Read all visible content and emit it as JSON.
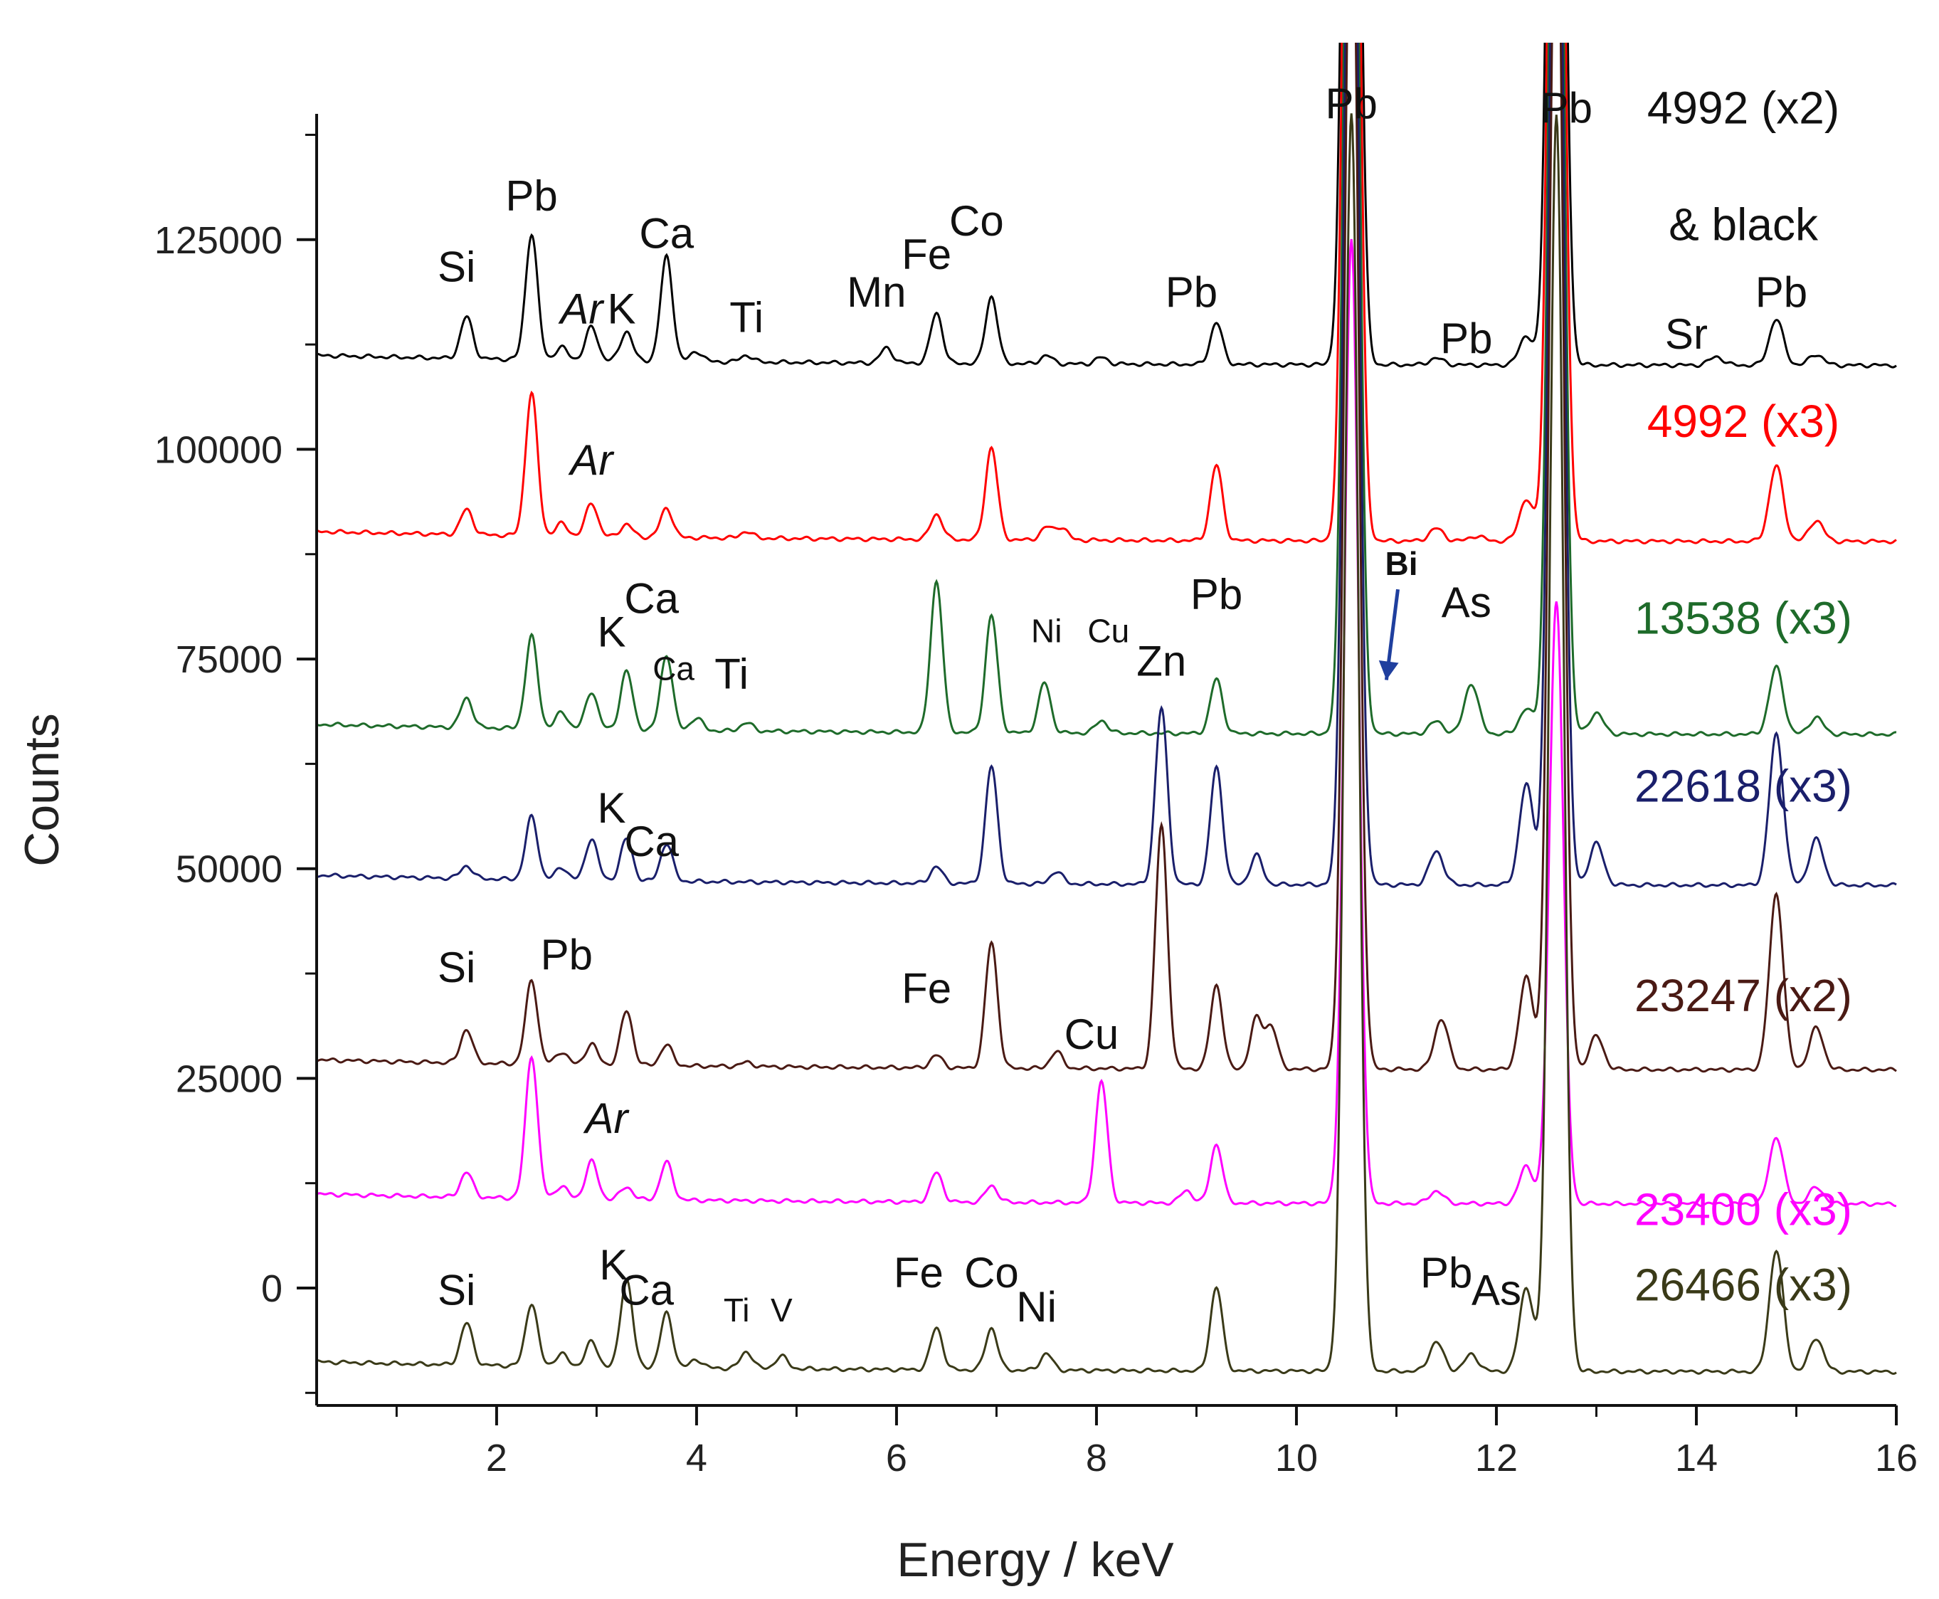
{
  "chart_data": {
    "type": "line",
    "title": "",
    "xlabel": "Energy / keV",
    "ylabel": "Counts",
    "xlim": [
      0.2,
      16
    ],
    "ylim": [
      -14000,
      140000
    ],
    "x_ticks": [
      2,
      4,
      6,
      8,
      10,
      12,
      14,
      16
    ],
    "x_tick_labels": [
      "2",
      "4",
      "6",
      "8",
      "10",
      "12",
      "14",
      "16"
    ],
    "y_ticks": [
      0,
      25000,
      50000,
      75000,
      100000,
      125000
    ],
    "y_tick_labels": [
      "0",
      "25000",
      "50000",
      "75000",
      "100000",
      "125000"
    ],
    "series": [
      {
        "name": "4992 (x2) & black",
        "label_lines": [
          "4992 (x2)",
          "& black"
        ],
        "color": "#000000",
        "baseline": 110000,
        "peaks": [
          [
            1.7,
            5000
          ],
          [
            2.35,
            15000
          ],
          [
            2.65,
            1500
          ],
          [
            2.95,
            4000
          ],
          [
            3.3,
            3500
          ],
          [
            3.7,
            12500
          ],
          [
            4.0,
            1200
          ],
          [
            4.5,
            800
          ],
          [
            5.9,
            1800
          ],
          [
            6.4,
            6000
          ],
          [
            6.95,
            8000
          ],
          [
            7.5,
            1000
          ],
          [
            8.05,
            800
          ],
          [
            9.2,
            5000
          ],
          [
            10.55,
            150000
          ],
          [
            11.4,
            800
          ],
          [
            12.3,
            3500
          ],
          [
            12.6,
            150000
          ],
          [
            14.2,
            1000
          ],
          [
            14.8,
            5500
          ],
          [
            15.2,
            1300
          ]
        ]
      },
      {
        "name": "4992 (x3)",
        "label_lines": [
          "4992 (x3)"
        ],
        "color": "#ff0000",
        "baseline": 89000,
        "peaks": [
          [
            1.7,
            3000
          ],
          [
            2.35,
            17000
          ],
          [
            2.65,
            1500
          ],
          [
            2.95,
            4000
          ],
          [
            3.3,
            1500
          ],
          [
            3.7,
            3500
          ],
          [
            4.5,
            800
          ],
          [
            6.4,
            3000
          ],
          [
            6.95,
            11000
          ],
          [
            7.5,
            1500
          ],
          [
            7.65,
            1500
          ],
          [
            9.2,
            9000
          ],
          [
            10.55,
            150000
          ],
          [
            11.4,
            1500
          ],
          [
            11.8,
            600
          ],
          [
            12.3,
            5000
          ],
          [
            12.6,
            150000
          ],
          [
            14.8,
            9000
          ],
          [
            15.2,
            2500
          ]
        ]
      },
      {
        "name": "13538 (x3)",
        "label_lines": [
          "13538 (x3)"
        ],
        "color": "#1e6b2a",
        "baseline": 66000,
        "peaks": [
          [
            1.7,
            3500
          ],
          [
            2.35,
            11000
          ],
          [
            2.65,
            2000
          ],
          [
            2.95,
            4500
          ],
          [
            3.3,
            7000
          ],
          [
            3.7,
            9000
          ],
          [
            4.0,
            1500
          ],
          [
            4.5,
            1000
          ],
          [
            6.4,
            18000
          ],
          [
            6.95,
            14000
          ],
          [
            7.48,
            6000
          ],
          [
            8.05,
            1500
          ],
          [
            9.2,
            6500
          ],
          [
            10.55,
            150000
          ],
          [
            11.4,
            1500
          ],
          [
            11.75,
            6000
          ],
          [
            12.3,
            3000
          ],
          [
            12.6,
            150000
          ],
          [
            13.0,
            2500
          ],
          [
            14.8,
            8000
          ],
          [
            15.2,
            2000
          ]
        ]
      },
      {
        "name": "22618 (x3)",
        "label_lines": [
          "22618 (x3)"
        ],
        "color": "#1a1f6b",
        "baseline": 48000,
        "peaks": [
          [
            1.7,
            1500
          ],
          [
            2.35,
            7500
          ],
          [
            2.65,
            1500
          ],
          [
            2.95,
            5000
          ],
          [
            3.3,
            5000
          ],
          [
            3.7,
            4500
          ],
          [
            6.4,
            2000
          ],
          [
            6.95,
            14000
          ],
          [
            7.6,
            1500
          ],
          [
            8.65,
            21000
          ],
          [
            9.2,
            14000
          ],
          [
            9.6,
            3500
          ],
          [
            10.55,
            150000
          ],
          [
            11.4,
            4000
          ],
          [
            12.3,
            12000
          ],
          [
            12.6,
            150000
          ],
          [
            13.0,
            5000
          ],
          [
            14.8,
            18000
          ],
          [
            15.2,
            5500
          ]
        ]
      },
      {
        "name": "23247 (x2)",
        "label_lines": [
          "23247 (x2)"
        ],
        "color": "#4a1a14",
        "baseline": 26000,
        "peaks": [
          [
            1.7,
            4000
          ],
          [
            2.35,
            10000
          ],
          [
            2.65,
            1500
          ],
          [
            2.95,
            2500
          ],
          [
            3.3,
            6500
          ],
          [
            3.7,
            2500
          ],
          [
            4.5,
            500
          ],
          [
            6.4,
            1500
          ],
          [
            6.95,
            15000
          ],
          [
            7.6,
            2000
          ],
          [
            8.65,
            29000
          ],
          [
            9.2,
            10000
          ],
          [
            9.6,
            6000
          ],
          [
            9.75,
            5000
          ],
          [
            10.55,
            150000
          ],
          [
            11.45,
            6000
          ],
          [
            12.3,
            11000
          ],
          [
            12.6,
            150000
          ],
          [
            13.0,
            4000
          ],
          [
            14.8,
            21000
          ],
          [
            15.2,
            5000
          ]
        ]
      },
      {
        "name": "23400 (x3)",
        "label_lines": [
          "23400 (x3)"
        ],
        "color": "#ff00ff",
        "baseline": 10000,
        "peaks": [
          [
            1.7,
            3000
          ],
          [
            2.35,
            17000
          ],
          [
            2.65,
            1500
          ],
          [
            2.95,
            4500
          ],
          [
            3.3,
            1500
          ],
          [
            3.7,
            4500
          ],
          [
            6.4,
            3500
          ],
          [
            6.95,
            2000
          ],
          [
            8.05,
            14500
          ],
          [
            8.9,
            1500
          ],
          [
            9.2,
            7000
          ],
          [
            10.55,
            115000
          ],
          [
            11.4,
            1500
          ],
          [
            12.3,
            4500
          ],
          [
            12.6,
            72000
          ],
          [
            14.8,
            8000
          ],
          [
            15.2,
            2000
          ]
        ]
      },
      {
        "name": "26466 (x3)",
        "label_lines": [
          "26466 (x3)"
        ],
        "color": "#3a3a18",
        "baseline": -10000,
        "peaks": [
          [
            1.7,
            5000
          ],
          [
            2.35,
            7500
          ],
          [
            2.65,
            1500
          ],
          [
            2.95,
            3000
          ],
          [
            3.3,
            10500
          ],
          [
            3.7,
            6500
          ],
          [
            4.0,
            1000
          ],
          [
            4.5,
            2000
          ],
          [
            4.85,
            1500
          ],
          [
            6.4,
            5000
          ],
          [
            6.95,
            5000
          ],
          [
            7.5,
            2000
          ],
          [
            9.2,
            10000
          ],
          [
            10.55,
            150000
          ],
          [
            11.4,
            3500
          ],
          [
            11.75,
            2000
          ],
          [
            12.3,
            10000
          ],
          [
            12.6,
            150000
          ],
          [
            14.8,
            14500
          ],
          [
            15.2,
            4000
          ]
        ]
      }
    ],
    "annotations": [
      {
        "text": "Si",
        "x": 1.6,
        "y": 120000
      },
      {
        "text": "Pb",
        "x": 2.35,
        "y": 128500
      },
      {
        "text": "Ar",
        "x": 2.85,
        "y": 115000,
        "italic": true
      },
      {
        "text": "K",
        "x": 3.25,
        "y": 115000
      },
      {
        "text": "Ca",
        "x": 3.7,
        "y": 124000
      },
      {
        "text": "Ti",
        "x": 4.5,
        "y": 114000
      },
      {
        "text": "Mn",
        "x": 5.8,
        "y": 117000
      },
      {
        "text": "Fe",
        "x": 6.3,
        "y": 121500
      },
      {
        "text": "Co",
        "x": 6.8,
        "y": 125500
      },
      {
        "text": "Pb",
        "x": 8.95,
        "y": 117000
      },
      {
        "text": "Pb",
        "x": 10.55,
        "y": 139500
      },
      {
        "text": "Pb",
        "x": 12.7,
        "y": 139000
      },
      {
        "text": "Pb",
        "x": 11.7,
        "y": 111500
      },
      {
        "text": "Sr",
        "x": 13.9,
        "y": 112000
      },
      {
        "text": "Pb",
        "x": 14.85,
        "y": 117000
      },
      {
        "text": "Ar",
        "x": 2.95,
        "y": 97000,
        "italic": true
      },
      {
        "text": "Bi",
        "x": 11.05,
        "y": 85000,
        "bold": true,
        "color": "#1f3f9e",
        "small": true
      },
      {
        "text": "K",
        "x": 3.15,
        "y": 76500
      },
      {
        "text": "Ca",
        "x": 3.55,
        "y": 80500
      },
      {
        "text": "Ca",
        "x": 3.77,
        "y": 72500,
        "small": true
      },
      {
        "text": "Ti",
        "x": 4.35,
        "y": 71500
      },
      {
        "text": "Ni",
        "x": 7.5,
        "y": 77000,
        "small": true
      },
      {
        "text": "Cu",
        "x": 8.12,
        "y": 77000,
        "small": true
      },
      {
        "text": "Zn",
        "x": 8.65,
        "y": 73000
      },
      {
        "text": "Pb",
        "x": 9.2,
        "y": 81000
      },
      {
        "text": "As",
        "x": 11.7,
        "y": 80000
      },
      {
        "text": "K",
        "x": 3.15,
        "y": 55500
      },
      {
        "text": "Ca",
        "x": 3.55,
        "y": 51500
      },
      {
        "text": "Si",
        "x": 1.6,
        "y": 36500
      },
      {
        "text": "Pb",
        "x": 2.7,
        "y": 38000
      },
      {
        "text": "Fe",
        "x": 6.3,
        "y": 34000
      },
      {
        "text": "Cu",
        "x": 7.95,
        "y": 28500
      },
      {
        "text": "Ar",
        "x": 3.1,
        "y": 18500,
        "italic": true
      },
      {
        "text": "Si",
        "x": 1.6,
        "y": -2000
      },
      {
        "text": "K",
        "x": 3.17,
        "y": 1000
      },
      {
        "text": "Ca",
        "x": 3.5,
        "y": -2000
      },
      {
        "text": "Ti",
        "x": 4.4,
        "y": -4000,
        "small": true
      },
      {
        "text": "V",
        "x": 4.85,
        "y": -4000,
        "small": true
      },
      {
        "text": "Fe",
        "x": 6.22,
        "y": 100
      },
      {
        "text": "Co",
        "x": 6.95,
        "y": 100
      },
      {
        "text": "Ni",
        "x": 7.4,
        "y": -4000
      },
      {
        "text": "Pb",
        "x": 11.5,
        "y": 100
      },
      {
        "text": "As",
        "x": 12.0,
        "y": -2000
      }
    ]
  }
}
